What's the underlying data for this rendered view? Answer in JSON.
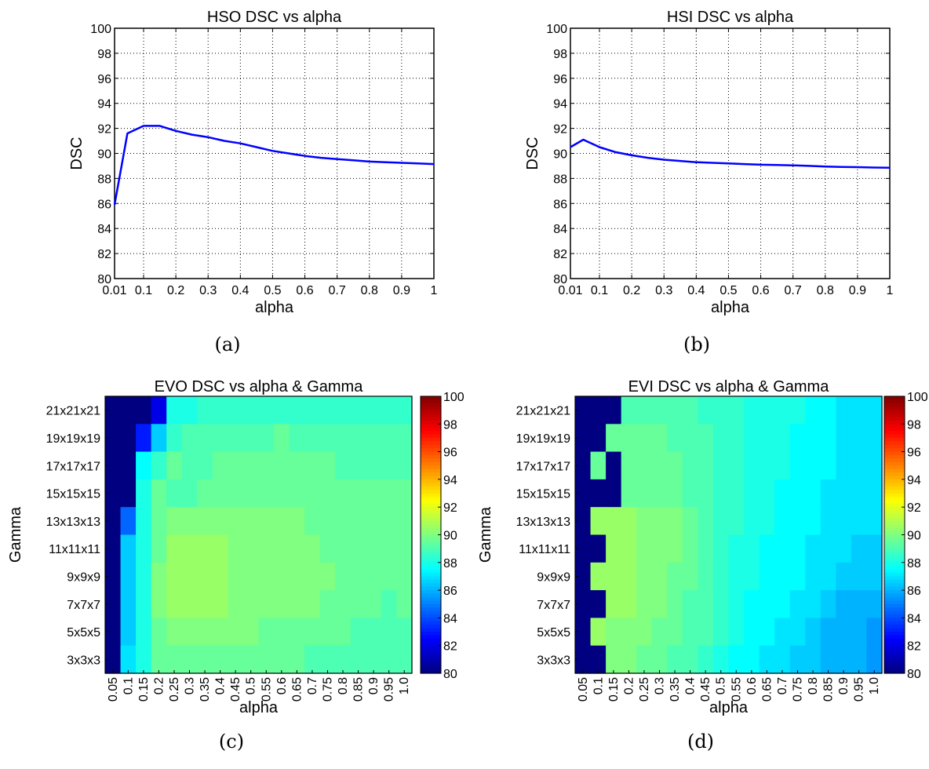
{
  "chart_data": [
    {
      "type": "line",
      "title": "HSO DSC vs alpha",
      "xlabel": "alpha",
      "ylabel": "DSC",
      "caption": "(a)",
      "xlim": [
        0.01,
        1
      ],
      "ylim": [
        80,
        100
      ],
      "xticks": [
        0.01,
        0.1,
        0.2,
        0.3,
        0.4,
        0.5,
        0.6,
        0.7,
        0.8,
        0.9,
        1
      ],
      "xticklabels": [
        "0.01",
        "0.1",
        "0.2",
        "0.3",
        "0.4",
        "0.5",
        "0.6",
        "0.7",
        "0.8",
        "0.9",
        "1"
      ],
      "yticks": [
        80,
        82,
        84,
        86,
        88,
        90,
        92,
        94,
        96,
        98,
        100
      ],
      "grid": true,
      "color": "#0000ff",
      "x": [
        0.01,
        0.05,
        0.1,
        0.15,
        0.2,
        0.25,
        0.3,
        0.35,
        0.4,
        0.45,
        0.5,
        0.55,
        0.6,
        0.65,
        0.7,
        0.75,
        0.8,
        0.85,
        0.9,
        0.95,
        1.0
      ],
      "y": [
        85.9,
        91.6,
        92.2,
        92.2,
        91.8,
        91.5,
        91.3,
        91.0,
        90.8,
        90.5,
        90.2,
        90.0,
        89.8,
        89.65,
        89.55,
        89.45,
        89.35,
        89.3,
        89.25,
        89.2,
        89.15
      ]
    },
    {
      "type": "line",
      "title": "HSI DSC vs alpha",
      "xlabel": "alpha",
      "ylabel": "DSC",
      "caption": "(b)",
      "xlim": [
        0.01,
        1
      ],
      "ylim": [
        80,
        100
      ],
      "xticks": [
        0.01,
        0.1,
        0.2,
        0.3,
        0.4,
        0.5,
        0.6,
        0.7,
        0.8,
        0.9,
        1
      ],
      "xticklabels": [
        "0.01",
        "0.1",
        "0.2",
        "0.3",
        "0.4",
        "0.5",
        "0.6",
        "0.7",
        "0.8",
        "0.9",
        "1"
      ],
      "yticks": [
        80,
        82,
        84,
        86,
        88,
        90,
        92,
        94,
        96,
        98,
        100
      ],
      "grid": true,
      "color": "#0000ff",
      "x": [
        0.01,
        0.05,
        0.1,
        0.15,
        0.2,
        0.25,
        0.3,
        0.35,
        0.4,
        0.45,
        0.5,
        0.55,
        0.6,
        0.65,
        0.7,
        0.75,
        0.8,
        0.85,
        0.9,
        0.95,
        1.0
      ],
      "y": [
        90.5,
        91.1,
        90.5,
        90.1,
        89.85,
        89.65,
        89.5,
        89.4,
        89.3,
        89.25,
        89.2,
        89.15,
        89.1,
        89.08,
        89.05,
        89.0,
        88.95,
        88.92,
        88.9,
        88.87,
        88.85
      ]
    },
    {
      "type": "heatmap",
      "title": "EVO DSC vs alpha & Gamma",
      "xlabel": "alpha",
      "ylabel": "Gamma",
      "caption": "(c)",
      "x": [
        "0.05",
        "0.1",
        "0.15",
        "0.2",
        "0.25",
        "0.3",
        "0.35",
        "0.4",
        "0.45",
        "0.5",
        "0.55",
        "0.6",
        "0.65",
        "0.7",
        "0.75",
        "0.8",
        "0.85",
        "0.9",
        "0.95",
        "1.0"
      ],
      "y": [
        "21x21x21",
        "19x19x19",
        "17x17x17",
        "15x15x15",
        "13x13x13",
        "11x11x11",
        "9x9x9",
        "7x7x7",
        "5x5x5",
        "3x3x3"
      ],
      "colorbar": {
        "range": [
          80,
          100
        ],
        "ticks": [
          80,
          82,
          84,
          86,
          88,
          90,
          92,
          94,
          96,
          98,
          100
        ]
      },
      "colormap": "jet",
      "values": [
        [
          80,
          80,
          80,
          82,
          88,
          88,
          88.5,
          88.5,
          88.5,
          88.5,
          88.5,
          88.5,
          88.5,
          88.5,
          88.5,
          88.5,
          88.5,
          88.5,
          88.5,
          88.5
        ],
        [
          80,
          80,
          83,
          86.5,
          88.5,
          89,
          89,
          89,
          89,
          89,
          89,
          89.5,
          89,
          89,
          89,
          89,
          89,
          89,
          89,
          89
        ],
        [
          80,
          80,
          87.5,
          88.5,
          89.5,
          89,
          89,
          89.5,
          89.5,
          89.5,
          89.5,
          89.5,
          89.5,
          89.5,
          89.5,
          89,
          89,
          89,
          89,
          89
        ],
        [
          80,
          80,
          88,
          89.5,
          89,
          89,
          89.5,
          89.5,
          89.5,
          89.5,
          89.5,
          89.5,
          89.5,
          89.5,
          89.5,
          89.5,
          89.5,
          89.5,
          89.5,
          89.5
        ],
        [
          80,
          84.5,
          88,
          89.5,
          90,
          90,
          90,
          90,
          90,
          90,
          90,
          90,
          90,
          89.5,
          89.5,
          89.5,
          89.5,
          89.5,
          89.5,
          89.5
        ],
        [
          80,
          86.5,
          88,
          89.5,
          90.5,
          90.5,
          90.5,
          90.5,
          90,
          90,
          90,
          90,
          90,
          90,
          89.5,
          89.5,
          89.5,
          89.5,
          89.5,
          89.5
        ],
        [
          80,
          86.5,
          88,
          90,
          90.5,
          90.5,
          90.5,
          90.5,
          90,
          90,
          90,
          90,
          90,
          90,
          90,
          89.5,
          89.5,
          89.5,
          89.5,
          89.5
        ],
        [
          80,
          86.5,
          88,
          90,
          90.5,
          90.5,
          90.5,
          90.5,
          90,
          90,
          90,
          90,
          90,
          90,
          89.5,
          89.5,
          89.5,
          89.5,
          89,
          89.5
        ],
        [
          80,
          86.5,
          88,
          89.5,
          90,
          90,
          90,
          90,
          90,
          90,
          89.5,
          89.5,
          89.5,
          89.5,
          89.5,
          89.5,
          89,
          89,
          89,
          89
        ],
        [
          80,
          87,
          88,
          89.5,
          89.5,
          89.5,
          89.5,
          89.5,
          89.5,
          89.5,
          89.5,
          89.5,
          89.5,
          89,
          89,
          89,
          89,
          89,
          89,
          89
        ]
      ]
    },
    {
      "type": "heatmap",
      "title": "EVI DSC vs alpha & Gamma",
      "xlabel": "alpha",
      "ylabel": "Gamma",
      "caption": "(d)",
      "x": [
        "0.05",
        "0.1",
        "0.15",
        "0.2",
        "0.25",
        "0.3",
        "0.35",
        "0.4",
        "0.45",
        "0.5",
        "0.55",
        "0.6",
        "0.65",
        "0.7",
        "0.75",
        "0.8",
        "0.85",
        "0.9",
        "0.95",
        "1.0"
      ],
      "y": [
        "21x21x21",
        "19x19x19",
        "17x17x17",
        "15x15x15",
        "13x13x13",
        "11x11x11",
        "9x9x9",
        "7x7x7",
        "5x5x5",
        "3x3x3"
      ],
      "colorbar": {
        "range": [
          80,
          100
        ],
        "ticks": [
          80,
          82,
          84,
          86,
          88,
          90,
          92,
          94,
          96,
          98,
          100
        ]
      },
      "colormap": "jet",
      "values": [
        [
          80,
          80,
          80,
          89,
          89,
          89,
          89,
          89,
          88.5,
          88.5,
          88.5,
          88,
          88,
          88,
          88,
          87.5,
          87.5,
          87,
          87,
          87
        ],
        [
          80,
          80,
          89.5,
          89.5,
          89.5,
          89.5,
          89,
          89,
          89,
          88.5,
          88.5,
          88,
          88,
          88,
          87.5,
          87.5,
          87.5,
          87,
          87,
          87
        ],
        [
          80,
          89.5,
          80,
          89.5,
          89.5,
          89.5,
          89.5,
          89,
          89,
          88.5,
          88.5,
          88,
          88,
          88,
          87.5,
          87.5,
          87.5,
          87,
          87,
          87
        ],
        [
          80,
          80,
          80,
          89.5,
          89.5,
          89.5,
          89.5,
          89,
          89,
          88.5,
          88.5,
          88,
          88,
          87.5,
          87.5,
          87.5,
          87,
          87,
          87,
          87
        ],
        [
          80,
          90.5,
          90.5,
          90.5,
          90,
          90,
          90,
          89.5,
          89,
          88.5,
          88.5,
          88,
          88,
          87.5,
          87.5,
          87.5,
          87,
          87,
          87,
          87
        ],
        [
          80,
          80,
          90.5,
          90.5,
          90,
          90,
          90,
          89.5,
          89,
          88.5,
          88,
          88,
          87.5,
          87.5,
          87.5,
          87,
          87,
          87,
          86.5,
          86.5
        ],
        [
          80,
          90.5,
          90.5,
          90.5,
          90,
          90,
          89.5,
          89.5,
          89,
          88.5,
          88,
          88,
          87.5,
          87.5,
          87.5,
          87,
          87,
          86.5,
          86.5,
          86.5
        ],
        [
          80,
          80,
          90.5,
          90.5,
          90,
          90,
          89.5,
          89,
          89,
          88.5,
          88,
          87.5,
          87.5,
          87.5,
          87,
          87,
          86.5,
          86,
          86,
          86
        ],
        [
          80,
          90.5,
          90,
          90,
          90,
          89.5,
          89.5,
          89,
          89,
          88.5,
          88,
          87.5,
          87.5,
          87,
          87,
          86.5,
          86,
          86,
          86,
          85.5
        ],
        [
          80,
          80,
          90,
          90,
          89.5,
          89.5,
          89,
          89,
          88.5,
          88,
          87.5,
          87.5,
          87,
          87,
          86.5,
          86.5,
          86,
          86,
          86,
          85.5
        ]
      ]
    }
  ]
}
